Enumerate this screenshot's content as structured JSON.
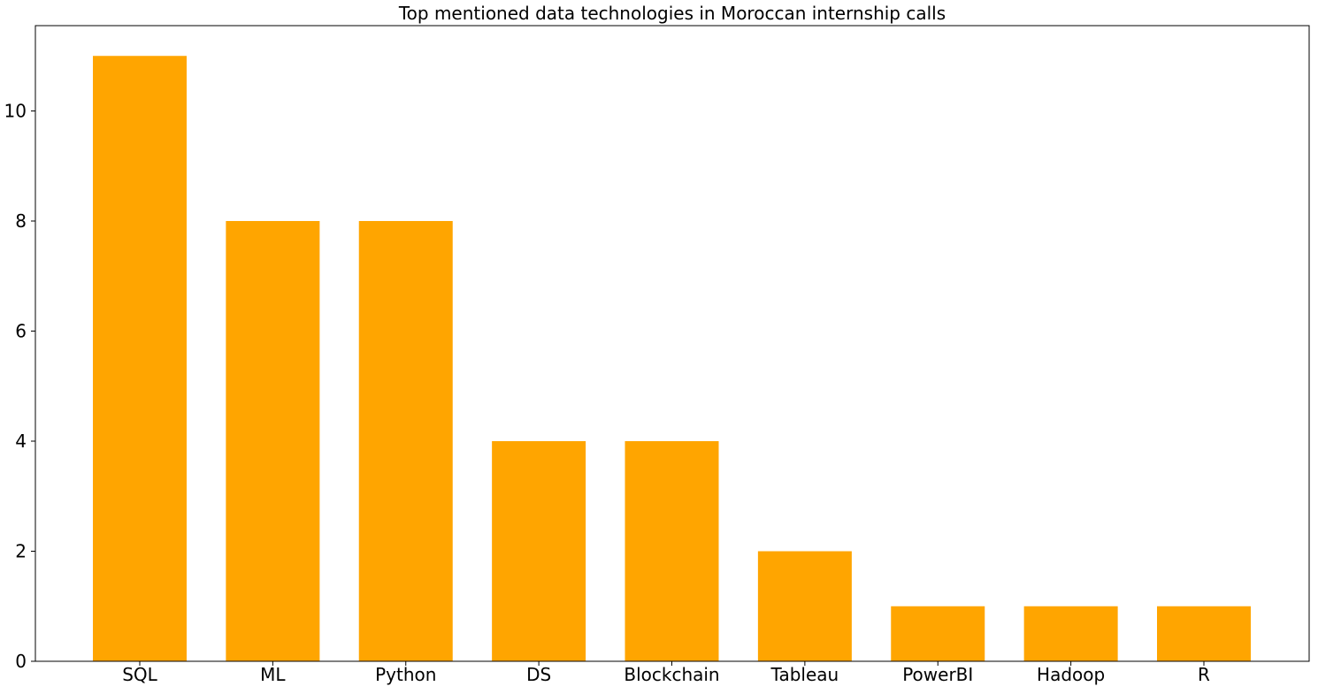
{
  "chart_data": {
    "type": "bar",
    "title": "Top  mentioned data technologies in Moroccan internship calls",
    "xlabel": "",
    "ylabel": "",
    "categories": [
      "SQL",
      "ML",
      "Python",
      "DS",
      "Blockchain",
      "Tableau",
      "PowerBI",
      "Hadoop",
      "R"
    ],
    "values": [
      11,
      8,
      8,
      4,
      4,
      2,
      1,
      1,
      1
    ],
    "ylim": [
      0,
      11.55
    ],
    "yticks": [
      0,
      2,
      4,
      6,
      8,
      10
    ],
    "bar_color": "#ffa500",
    "grid": false,
    "legend": "none"
  }
}
